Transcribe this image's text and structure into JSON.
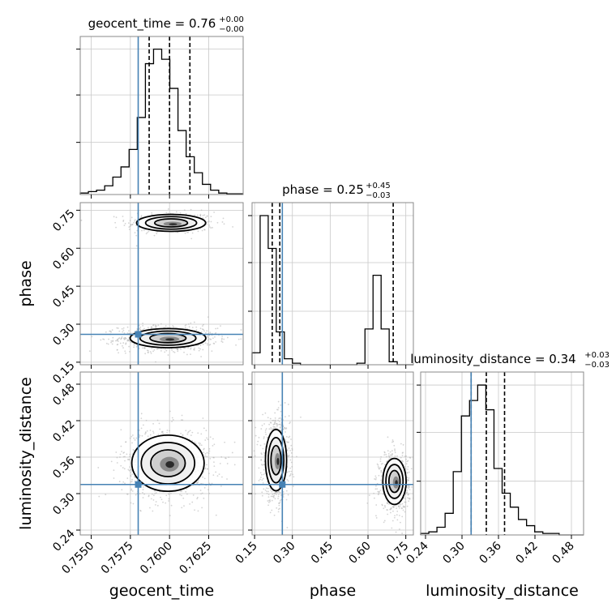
{
  "chart_data": {
    "type": "corner",
    "parameters": [
      "geocent_time",
      "phase",
      "luminosity_distance"
    ],
    "titles": [
      {
        "param": "geocent_time",
        "main": "geocent_time = 0.76",
        "plus": "+0.00",
        "minus": "−0.00"
      },
      {
        "param": "phase",
        "main": "phase = 0.25",
        "plus": "+0.45",
        "minus": "−0.03"
      },
      {
        "param": "luminosity_distance",
        "main": "luminosity_distance = 0.34",
        "plus": "+0.03",
        "minus": "−0.03"
      }
    ],
    "axis_labels": {
      "x": [
        "geocent_time",
        "phase",
        "luminosity_distance"
      ],
      "y": [
        "phase",
        "luminosity_distance"
      ]
    },
    "ranges": {
      "geocent_time": [
        0.7543,
        0.7647
      ],
      "phase": [
        0.14,
        0.78
      ],
      "luminosity_distance": [
        0.232,
        0.5
      ]
    },
    "ticks": {
      "geocent_time": {
        "values": [
          0.755,
          0.7575,
          0.76,
          0.7625
        ],
        "labels": [
          "0.7550",
          "0.7575",
          "0.7600",
          "0.7625"
        ]
      },
      "phase": {
        "values": [
          0.15,
          0.3,
          0.45,
          0.6,
          0.75
        ],
        "labels": [
          "0.15",
          "0.30",
          "0.45",
          "0.60",
          "0.75"
        ]
      },
      "luminosity_distance": {
        "values": [
          0.24,
          0.3,
          0.36,
          0.42,
          0.48
        ],
        "labels": [
          "0.24",
          "0.30",
          "0.36",
          "0.42",
          "0.48"
        ]
      }
    },
    "truth": {
      "geocent_time": 0.758,
      "phase": 0.26,
      "luminosity_distance": 0.315
    },
    "quantiles": {
      "geocent_time": [
        0.7587,
        0.76,
        0.7613
      ],
      "phase": [
        0.22,
        0.25,
        0.7
      ],
      "luminosity_distance": [
        0.315,
        0.34,
        0.37
      ]
    },
    "histograms": {
      "geocent_time": {
        "edges_start": 0.7543,
        "edges_step": 0.00052,
        "counts": [
          1,
          2,
          3,
          6,
          12,
          19,
          31,
          53,
          90,
          100,
          93,
          73,
          44,
          26,
          15,
          7,
          3,
          1,
          0.5,
          0.5
        ]
      },
      "phase": {
        "edges_start": 0.14,
        "edges_step": 0.032,
        "counts": [
          8,
          100,
          78,
          22,
          4,
          1,
          0,
          0,
          0,
          0,
          0,
          0,
          0,
          1,
          24,
          60,
          24,
          2,
          0,
          0
        ]
      },
      "luminosity_distance": {
        "edges_start": 0.232,
        "edges_step": 0.0134,
        "counts": [
          1,
          2,
          5,
          14,
          41,
          77,
          87,
          97,
          81,
          43,
          27,
          18,
          10,
          6,
          2,
          1,
          1,
          0,
          0,
          0
        ]
      }
    },
    "modes": [
      {
        "x": "geocent_time",
        "y": "phase",
        "blobs": [
          {
            "cx": 0.7601,
            "cy": 0.7,
            "sx": 0.00105,
            "sy": 0.016,
            "w": 0.45
          },
          {
            "cx": 0.7599,
            "cy": 0.245,
            "sx": 0.00115,
            "sy": 0.018,
            "w": 1.0
          }
        ]
      },
      {
        "x": "geocent_time",
        "y": "luminosity_distance",
        "blobs": [
          {
            "cx": 0.7599,
            "cy": 0.35,
            "sx": 0.0011,
            "sy": 0.022,
            "w": 1.0
          }
        ]
      },
      {
        "x": "phase",
        "y": "luminosity_distance",
        "blobs": [
          {
            "cx": 0.235,
            "cy": 0.355,
            "sx": 0.02,
            "sy": 0.024,
            "w": 1.0
          },
          {
            "cx": 0.705,
            "cy": 0.32,
            "sx": 0.022,
            "sy": 0.018,
            "w": 0.75
          }
        ]
      }
    ],
    "colors": {
      "truth": "#4682b4",
      "hist": "#000000",
      "grid": "#c8c8c8",
      "samples": "#b0b0b0"
    },
    "grid": true
  }
}
